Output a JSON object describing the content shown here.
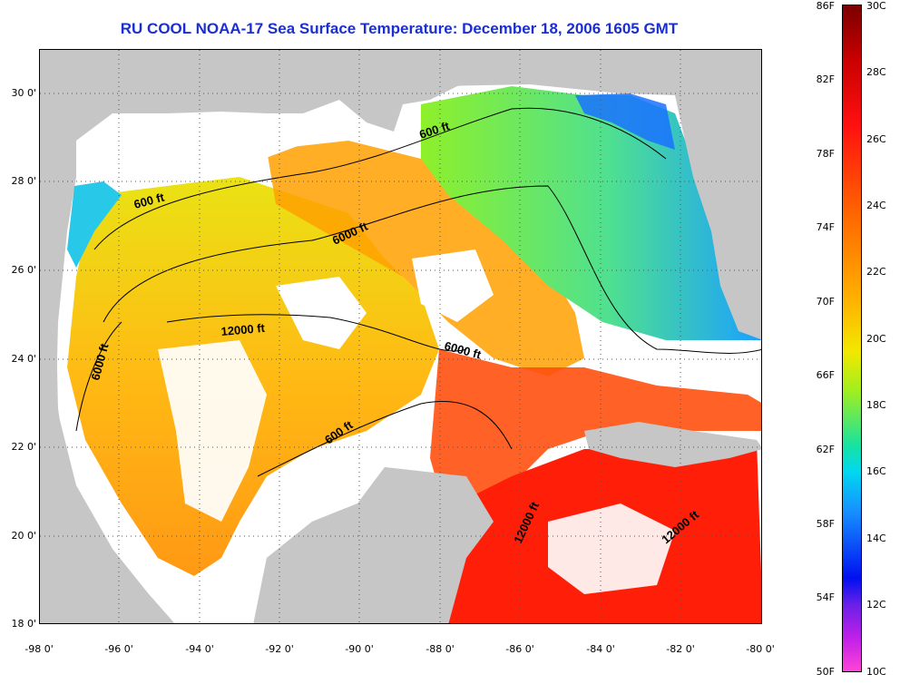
{
  "title": "RU COOL  NOAA-17  Sea Surface Temperature:  December 18, 2006 1605 GMT",
  "map": {
    "lon_range": [
      -98,
      -80
    ],
    "lat_range": [
      18,
      31
    ],
    "lat_ticks": [
      "30 0'",
      "28 0'",
      "26 0'",
      "24 0'",
      "22 0'",
      "20 0'",
      "18 0'"
    ],
    "lon_ticks": [
      "-98 0'",
      "-96 0'",
      "-94 0'",
      "-92 0'",
      "-90 0'",
      "-88 0'",
      "-86 0'",
      "-84 0'",
      "-82 0'",
      "-80 0'"
    ],
    "contour_labels": [
      "600 ft",
      "600 ft",
      "6000 ft",
      "6000 ft",
      "12000 ft",
      "6000 ft",
      "600 ft",
      "12000 ft",
      "12000 ft"
    ],
    "colors": {
      "land": "#c6c6c6",
      "cloud": "#ffffff",
      "grid": "#555555"
    }
  },
  "colorbar": {
    "fahrenheit": [
      "86F",
      "82F",
      "78F",
      "74F",
      "70F",
      "66F",
      "62F",
      "58F",
      "54F",
      "50F"
    ],
    "celsius": [
      "30C",
      "28C",
      "26C",
      "24C",
      "22C",
      "20C",
      "18C",
      "16C",
      "14C",
      "12C",
      "10C"
    ]
  }
}
